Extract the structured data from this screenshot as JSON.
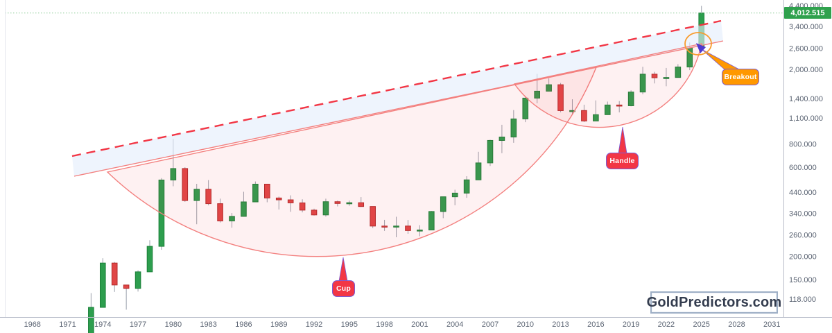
{
  "chart_data": {
    "type": "candlestick",
    "scale": "logarithmic",
    "watermark": "GoldPredictors.com",
    "pattern_annotations": {
      "cup": "Cup",
      "handle": "Handle",
      "breakout": "Breakout"
    },
    "last_price": {
      "label": "4,012.515",
      "value": 4012.515
    },
    "x_axis": {
      "ticks": [
        1968,
        1971,
        1974,
        1977,
        1980,
        1983,
        1986,
        1989,
        1992,
        1995,
        1998,
        2001,
        2004,
        2007,
        2010,
        2013,
        2016,
        2019,
        2022,
        2025,
        2028,
        2031
      ]
    },
    "y_axis": {
      "tick_labels": [
        "4,400.000",
        "3,400.000",
        "2,600.000",
        "2,000.000",
        "1,400.000",
        "1,100.000",
        "800.000",
        "600.000",
        "440.000",
        "340.000",
        "260.000",
        "200.000",
        "150.000",
        "118.000"
      ],
      "tick_values": [
        4400,
        3400,
        2600,
        2000,
        1400,
        1100,
        800,
        600,
        440,
        340,
        260,
        200,
        150,
        118
      ]
    },
    "candle_fields": [
      "year",
      "open",
      "high",
      "low",
      "close"
    ],
    "candles": [
      [
        1973,
        65,
        127,
        64,
        106.5
      ],
      [
        1974,
        106.5,
        195.3,
        106.5,
        183.9
      ],
      [
        1975,
        183.9,
        186.3,
        128.8,
        140.3
      ],
      [
        1976,
        140.3,
        140.4,
        103.5,
        134.6
      ],
      [
        1977,
        134.6,
        168.2,
        129.4,
        165
      ],
      [
        1978,
        165,
        243.7,
        165,
        226
      ],
      [
        1979,
        226,
        524,
        216.6,
        512
      ],
      [
        1980,
        512,
        850,
        474,
        589.8
      ],
      [
        1981,
        589.8,
        599.3,
        391.3,
        397.5
      ],
      [
        1982,
        397.5,
        488.5,
        296.8,
        456.9
      ],
      [
        1983,
        456.9,
        511.5,
        374.8,
        382.4
      ],
      [
        1984,
        382.4,
        406.9,
        303.3,
        309
      ],
      [
        1985,
        309,
        340.9,
        284.3,
        327
      ],
      [
        1986,
        327,
        442.8,
        326,
        390.9
      ],
      [
        1987,
        390.9,
        502.8,
        390,
        486.5
      ],
      [
        1988,
        486.5,
        488,
        389.1,
        410.2
      ],
      [
        1989,
        410.2,
        417.2,
        355.8,
        401
      ],
      [
        1990,
        401,
        423.8,
        345.9,
        386.2
      ],
      [
        1991,
        386.2,
        403.7,
        343.5,
        353.2
      ],
      [
        1992,
        353.2,
        359.6,
        330.2,
        332.9
      ],
      [
        1993,
        332.9,
        406.7,
        326.1,
        391.8
      ],
      [
        1994,
        391.8,
        397.5,
        369.7,
        383.3
      ],
      [
        1995,
        383.3,
        397,
        372.4,
        387
      ],
      [
        1996,
        387,
        414.8,
        367.4,
        369.3
      ],
      [
        1997,
        369.3,
        369.6,
        283,
        290.2
      ],
      [
        1998,
        290.2,
        313.2,
        273.4,
        287.8
      ],
      [
        1999,
        287.8,
        325.5,
        252.8,
        290.3
      ],
      [
        2000,
        290.3,
        312.7,
        263.8,
        274.5
      ],
      [
        2001,
        274.5,
        293.3,
        256,
        276.5
      ],
      [
        2002,
        276.5,
        349.3,
        276,
        347.2
      ],
      [
        2003,
        347.2,
        416.3,
        319.9,
        416.3
      ],
      [
        2004,
        416.3,
        454.2,
        375,
        435.6
      ],
      [
        2005,
        435.6,
        536.5,
        411.1,
        513
      ],
      [
        2006,
        513,
        725,
        513,
        632
      ],
      [
        2007,
        632,
        841.1,
        608.4,
        833.8
      ],
      [
        2008,
        833.8,
        1011.3,
        712.5,
        869.8
      ],
      [
        2009,
        869.8,
        1212.5,
        810,
        1087.5
      ],
      [
        2010,
        1087.5,
        1421,
        1044.5,
        1405.5
      ],
      [
        2011,
        1405.5,
        1895,
        1319,
        1531
      ],
      [
        2012,
        1531,
        1791.8,
        1527,
        1657.5
      ],
      [
        2013,
        1657.5,
        1693.8,
        1180.5,
        1204.5
      ],
      [
        2014,
        1204.5,
        1385,
        1142,
        1206
      ],
      [
        2015,
        1206,
        1295.8,
        1046.2,
        1060
      ],
      [
        2016,
        1060,
        1366.3,
        1060,
        1145.9
      ],
      [
        2017,
        1145.9,
        1346.3,
        1145.9,
        1291
      ],
      [
        2018,
        1291,
        1355,
        1178.4,
        1279
      ],
      [
        2019,
        1279,
        1546.1,
        1269.5,
        1514.8
      ],
      [
        2020,
        1514.8,
        2067.2,
        1474.3,
        1887.6
      ],
      [
        2021,
        1887.6,
        1943.2,
        1684,
        1805.9
      ],
      [
        2022,
        1805.9,
        2039.1,
        1626.7,
        1812.4
      ],
      [
        2023,
        1812.4,
        2135.4,
        1811,
        2062.4
      ],
      [
        2024,
        2062.4,
        2790.1,
        1984.1,
        2610.9
      ],
      [
        2025,
        2610.9,
        4381,
        2596,
        4012.515
      ]
    ]
  },
  "colors": {
    "up_fill": "#2d9e4e",
    "up_stroke": "#1a7f38",
    "down_fill": "#e04646",
    "down_stroke": "#b02a2a",
    "wick": "#9aa0ab",
    "trendline_dashed": "#f23645",
    "arc_stroke": "#f3807f",
    "arc_fill": "rgba(242,54,69,0.07)",
    "band_fill": "rgba(228,237,252,0.62)",
    "badge_red": "#f23645",
    "badge_orange": "#ff9800",
    "badge_border": "#7b5cd6",
    "breakout_circle": "#f89c2d",
    "arrowhead": "#4f3bd0",
    "price_line_dotted": "#8bcb96",
    "price_badge_bg": "#2fa14d",
    "axis_line": "#b8bcc9",
    "axis_text": "#5a6372"
  }
}
